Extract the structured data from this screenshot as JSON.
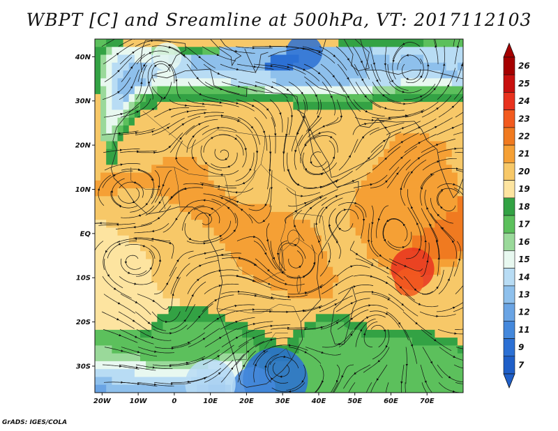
{
  "title": "WBPT [C] and Sreamline at 500hPa, VT: 2017112103",
  "credit": "GrADS: IGES/COLA",
  "lat_labels": [
    {
      "text": "40N",
      "lat": 40
    },
    {
      "text": "30N",
      "lat": 30
    },
    {
      "text": "20N",
      "lat": 20
    },
    {
      "text": "10N",
      "lat": 10
    },
    {
      "text": "EQ",
      "lat": 0
    },
    {
      "text": "10S",
      "lat": -10
    },
    {
      "text": "20S",
      "lat": -20
    },
    {
      "text": "30S",
      "lat": -30
    }
  ],
  "lon_labels": [
    {
      "text": "20W",
      "lon": -20
    },
    {
      "text": "10W",
      "lon": -10
    },
    {
      "text": "0",
      "lon": 0
    },
    {
      "text": "10E",
      "lon": 10
    },
    {
      "text": "20E",
      "lon": 20
    },
    {
      "text": "30E",
      "lon": 30
    },
    {
      "text": "40E",
      "lon": 40
    },
    {
      "text": "50E",
      "lon": 50
    },
    {
      "text": "60E",
      "lon": 60
    },
    {
      "text": "70E",
      "lon": 70
    }
  ],
  "colorbar": {
    "labels": [
      "26",
      "25",
      "24",
      "23",
      "22",
      "21",
      "20",
      "19",
      "18",
      "17",
      "16",
      "15",
      "14",
      "13",
      "12",
      "11",
      "9",
      "7"
    ],
    "colors": [
      "#a50000",
      "#c8100e",
      "#e8321e",
      "#f25a1e",
      "#f07a20",
      "#f5a035",
      "#f7c868",
      "#fde4a0",
      "#33a244",
      "#5cc05c",
      "#9ad99a",
      "#e8f8f0",
      "#b8dcf4",
      "#8ec0ec",
      "#6aa4e4",
      "#4488dc",
      "#2c70d4",
      "#1f5fc8"
    ]
  },
  "map": {
    "lon_range": [
      -22,
      80
    ],
    "lat_range": [
      -36,
      44
    ],
    "levels": {
      "h": "#f07a20",
      "o": "#f5a035",
      "y": "#f7c868",
      "l": "#fde4a0",
      "g": "#33a244",
      "m": "#5cc05c",
      "p": "#9ad99a",
      "w": "#e8f8f0",
      "c": "#b8dcf4",
      "b": "#8ec0ec",
      "d": "#6aa4e4",
      "e": "#4488dc",
      "f": "#2c70d4"
    }
  }
}
